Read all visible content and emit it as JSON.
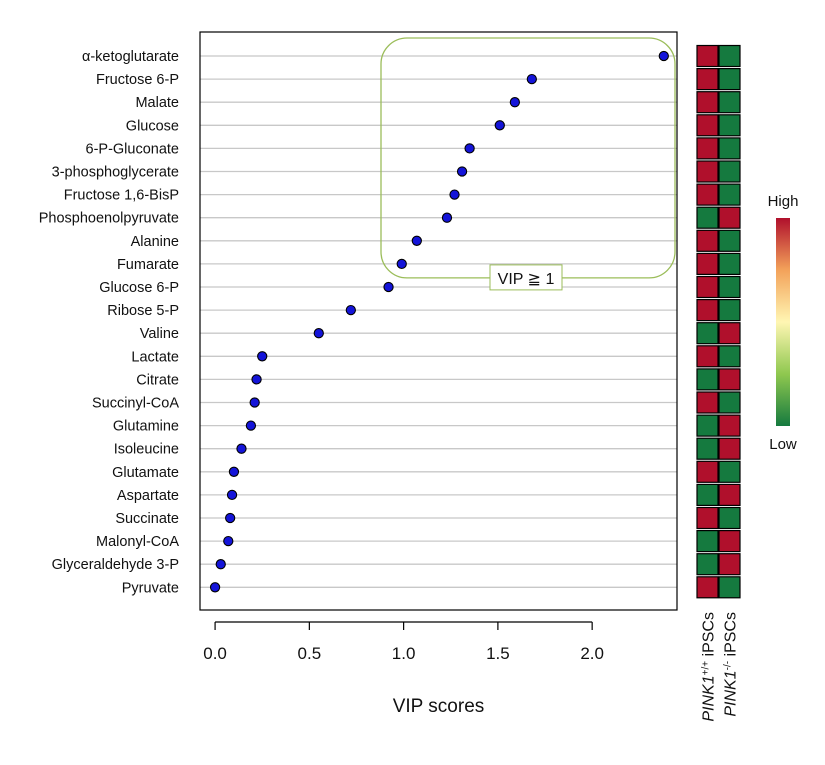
{
  "chart_data": {
    "type": "dot",
    "xlabel": "VIP scores",
    "xlim": [
      -0.08,
      2.45
    ],
    "xticks": [
      0.0,
      0.5,
      1.0,
      1.5,
      2.0
    ],
    "xtick_labels": [
      "0.0",
      "0.5",
      "1.0",
      "1.5",
      "2.0"
    ],
    "categories": [
      "α-ketoglutarate",
      "Fructose 6-P",
      "Malate",
      "Glucose",
      "6-P-Gluconate",
      "3-phosphoglycerate",
      "Fructose 1,6-BisP",
      "Phosphoenolpyruvate",
      "Alanine",
      "Fumarate",
      "Glucose 6-P",
      "Ribose 5-P",
      "Valine",
      "Lactate",
      "Citrate",
      "Succinyl-CoA",
      "Glutamine",
      "Isoleucine",
      "Glutamate",
      "Aspartate",
      "Succinate",
      "Malonyl-CoA",
      "Glyceraldehyde 3-P",
      "Pyruvate"
    ],
    "values": [
      2.38,
      1.68,
      1.59,
      1.51,
      1.35,
      1.31,
      1.27,
      1.23,
      1.07,
      0.99,
      0.92,
      0.72,
      0.55,
      0.25,
      0.22,
      0.21,
      0.19,
      0.14,
      0.1,
      0.09,
      0.08,
      0.07,
      0.03,
      0.0
    ],
    "highlight": {
      "label": "VIP ≧ 1",
      "threshold": 1,
      "x_range": [
        0.88,
        2.45
      ]
    },
    "heatmap": {
      "columns": [
        {
          "prefix": "PINK1",
          "superscript": "+/+",
          "suffix": " iPSCs"
        },
        {
          "prefix": "PINK1",
          "superscript": "-/-",
          "suffix": " iPSCs"
        }
      ],
      "levels": [
        [
          "high",
          "low"
        ],
        [
          "high",
          "low"
        ],
        [
          "high",
          "low"
        ],
        [
          "high",
          "low"
        ],
        [
          "high",
          "low"
        ],
        [
          "high",
          "low"
        ],
        [
          "high",
          "low"
        ],
        [
          "low",
          "high"
        ],
        [
          "high",
          "low"
        ],
        [
          "high",
          "low"
        ],
        [
          "high",
          "low"
        ],
        [
          "high",
          "low"
        ],
        [
          "low",
          "high"
        ],
        [
          "high",
          "low"
        ],
        [
          "low",
          "high"
        ],
        [
          "high",
          "low"
        ],
        [
          "low",
          "high"
        ],
        [
          "low",
          "high"
        ],
        [
          "high",
          "low"
        ],
        [
          "low",
          "high"
        ],
        [
          "high",
          "low"
        ],
        [
          "low",
          "high"
        ],
        [
          "low",
          "high"
        ],
        [
          "high",
          "low"
        ]
      ],
      "legend": {
        "high_label": "High",
        "low_label": "Low"
      }
    },
    "colors": {
      "dot": "#1414d9",
      "grid": "#c8c8c8",
      "highlight_box": "#9bbd5a",
      "high": "#b0102c",
      "low": "#157a3f",
      "gradient": [
        "#157a3f",
        "#8fc84f",
        "#fff6b3",
        "#f3a25a",
        "#b0102c"
      ]
    }
  }
}
